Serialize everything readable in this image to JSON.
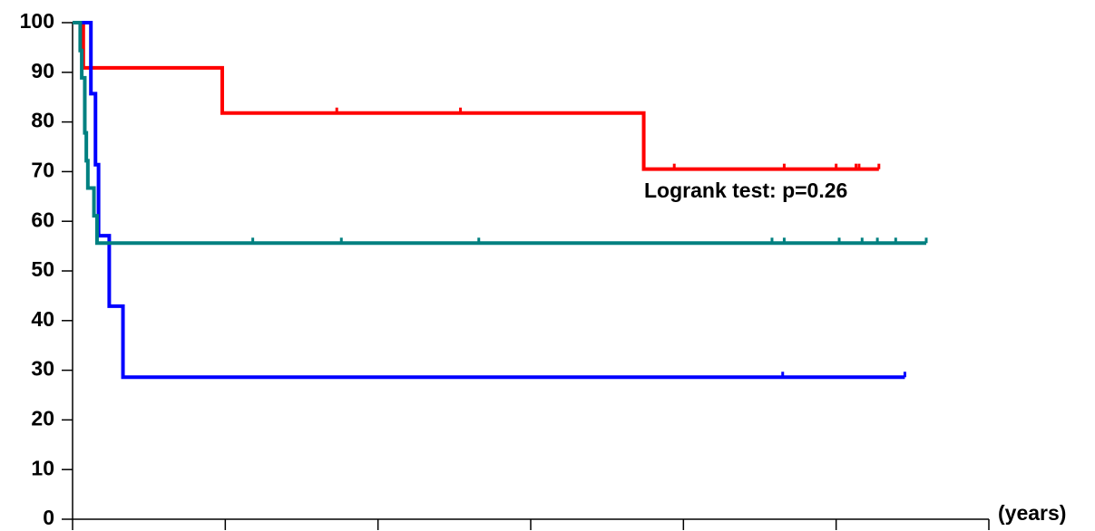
{
  "chart_data": {
    "type": "step",
    "annotation": "Logrank test: p=0.26",
    "x_label": "(years)",
    "xlim": [
      0,
      6
    ],
    "xticks": [
      0,
      1,
      2,
      3,
      4,
      5,
      6
    ],
    "ylim": [
      0,
      100
    ],
    "yticks": [
      0,
      10,
      20,
      30,
      40,
      50,
      60,
      70,
      80,
      90,
      100
    ],
    "series": [
      {
        "color": "#ff0000",
        "x": [
          0,
          0.07,
          0.98,
          3.74,
          5.28
        ],
        "values": [
          100,
          90.9,
          81.8,
          70.5,
          70.5
        ],
        "censored_x": [
          1.73,
          2.54,
          3.94,
          4.66,
          5.0,
          5.13,
          5.15,
          5.28
        ]
      },
      {
        "color": "#0000ff",
        "x": [
          0,
          0.12,
          0.15,
          0.17,
          0.24,
          0.33,
          5.45
        ],
        "values": [
          100,
          85.7,
          71.4,
          57.1,
          42.9,
          28.6,
          28.6
        ],
        "censored_x": [
          4.65,
          5.45
        ]
      },
      {
        "color": "#008080",
        "x": [
          0,
          0.05,
          0.06,
          0.08,
          0.09,
          0.1,
          0.14,
          0.16,
          5.59
        ],
        "values": [
          100,
          94.4,
          88.9,
          77.8,
          72.2,
          66.7,
          61.1,
          55.6,
          55.6
        ],
        "censored_x": [
          1.18,
          1.76,
          2.66,
          4.58,
          4.66,
          5.02,
          5.17,
          5.27,
          5.39,
          5.59
        ]
      }
    ]
  }
}
